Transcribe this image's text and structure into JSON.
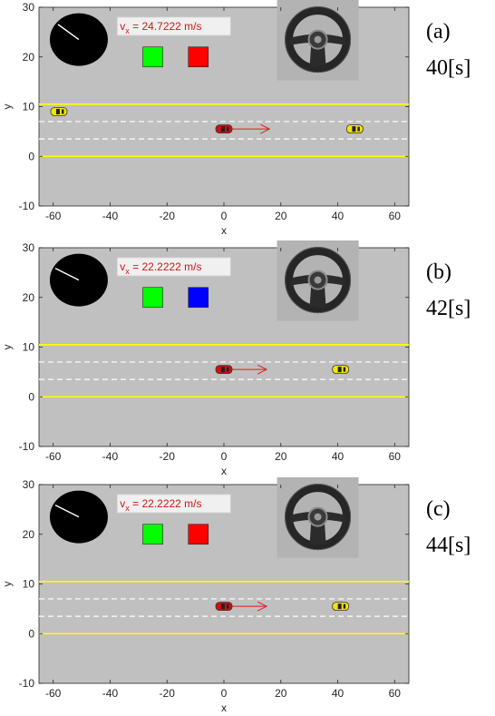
{
  "colors": {
    "road": "#c0c0c0",
    "lane_edge": "#ffff00",
    "lane_dash": "#ffffff",
    "ego_car": "#cc1111",
    "other_car": "#f2e600",
    "arrow": "#e31a1c",
    "light_green": "#00ff00",
    "light_red": "#ff0000",
    "light_blue": "#0000ff",
    "speed_text": "#d11515"
  },
  "chart_data": [
    {
      "type": "scatter",
      "label": "(a)",
      "time": "40[s]",
      "xlabel": "x",
      "ylabel": "y",
      "xlim": [
        -65,
        65
      ],
      "ylim": [
        -10,
        30
      ],
      "xticks": [
        "-60",
        "-40",
        "-20",
        "0",
        "20",
        "40",
        "60"
      ],
      "yticks": [
        "30",
        "20",
        "10",
        "0",
        "-10"
      ],
      "velocity_prefix": "v",
      "velocity_sub": "x",
      "velocity_text": " = 24.7222 m/s",
      "lane_edges_y": [
        0,
        10.5
      ],
      "lane_dashes_y": [
        3.5,
        7
      ],
      "ego_car": {
        "x": 0,
        "y": 5.5
      },
      "ego_arrow_to_x": 16,
      "other_cars": [
        {
          "x": -58,
          "y": 9
        },
        {
          "x": 46,
          "y": 5.5
        }
      ],
      "lights": [
        "green",
        "red"
      ],
      "dial_angle_deg": 140
    },
    {
      "type": "scatter",
      "label": "(b)",
      "time": "42[s]",
      "xlabel": "x",
      "ylabel": "y",
      "xlim": [
        -65,
        65
      ],
      "ylim": [
        -10,
        30
      ],
      "xticks": [
        "-60",
        "-40",
        "-20",
        "0",
        "20",
        "40",
        "60"
      ],
      "yticks": [
        "30",
        "20",
        "10",
        "0",
        "-10"
      ],
      "velocity_prefix": "v",
      "velocity_sub": "x",
      "velocity_text": " = 22.2222 m/s",
      "lane_edges_y": [
        0,
        10.5
      ],
      "lane_dashes_y": [
        3.5,
        7
      ],
      "ego_car": {
        "x": 0,
        "y": 5.5
      },
      "ego_arrow_to_x": 15,
      "other_cars": [
        {
          "x": 41,
          "y": 5.5
        }
      ],
      "lights": [
        "green",
        "blue"
      ],
      "dial_angle_deg": 150
    },
    {
      "type": "scatter",
      "label": "(c)",
      "time": "44[s]",
      "xlabel": "x",
      "ylabel": "y",
      "xlim": [
        -65,
        65
      ],
      "ylim": [
        -10,
        30
      ],
      "xticks": [
        "-60",
        "-40",
        "-20",
        "0",
        "20",
        "40",
        "60"
      ],
      "yticks": [
        "30",
        "20",
        "10",
        "0",
        "-10"
      ],
      "velocity_prefix": "v",
      "velocity_sub": "x",
      "velocity_text": " = 22.2222 m/s",
      "lane_edges_y": [
        0,
        10.5
      ],
      "lane_dashes_y": [
        3.5,
        7
      ],
      "ego_car": {
        "x": 0,
        "y": 5.5
      },
      "ego_arrow_to_x": 15,
      "other_cars": [
        {
          "x": 41,
          "y": 5.5
        }
      ],
      "lights": [
        "green",
        "red"
      ],
      "dial_angle_deg": 150
    }
  ]
}
